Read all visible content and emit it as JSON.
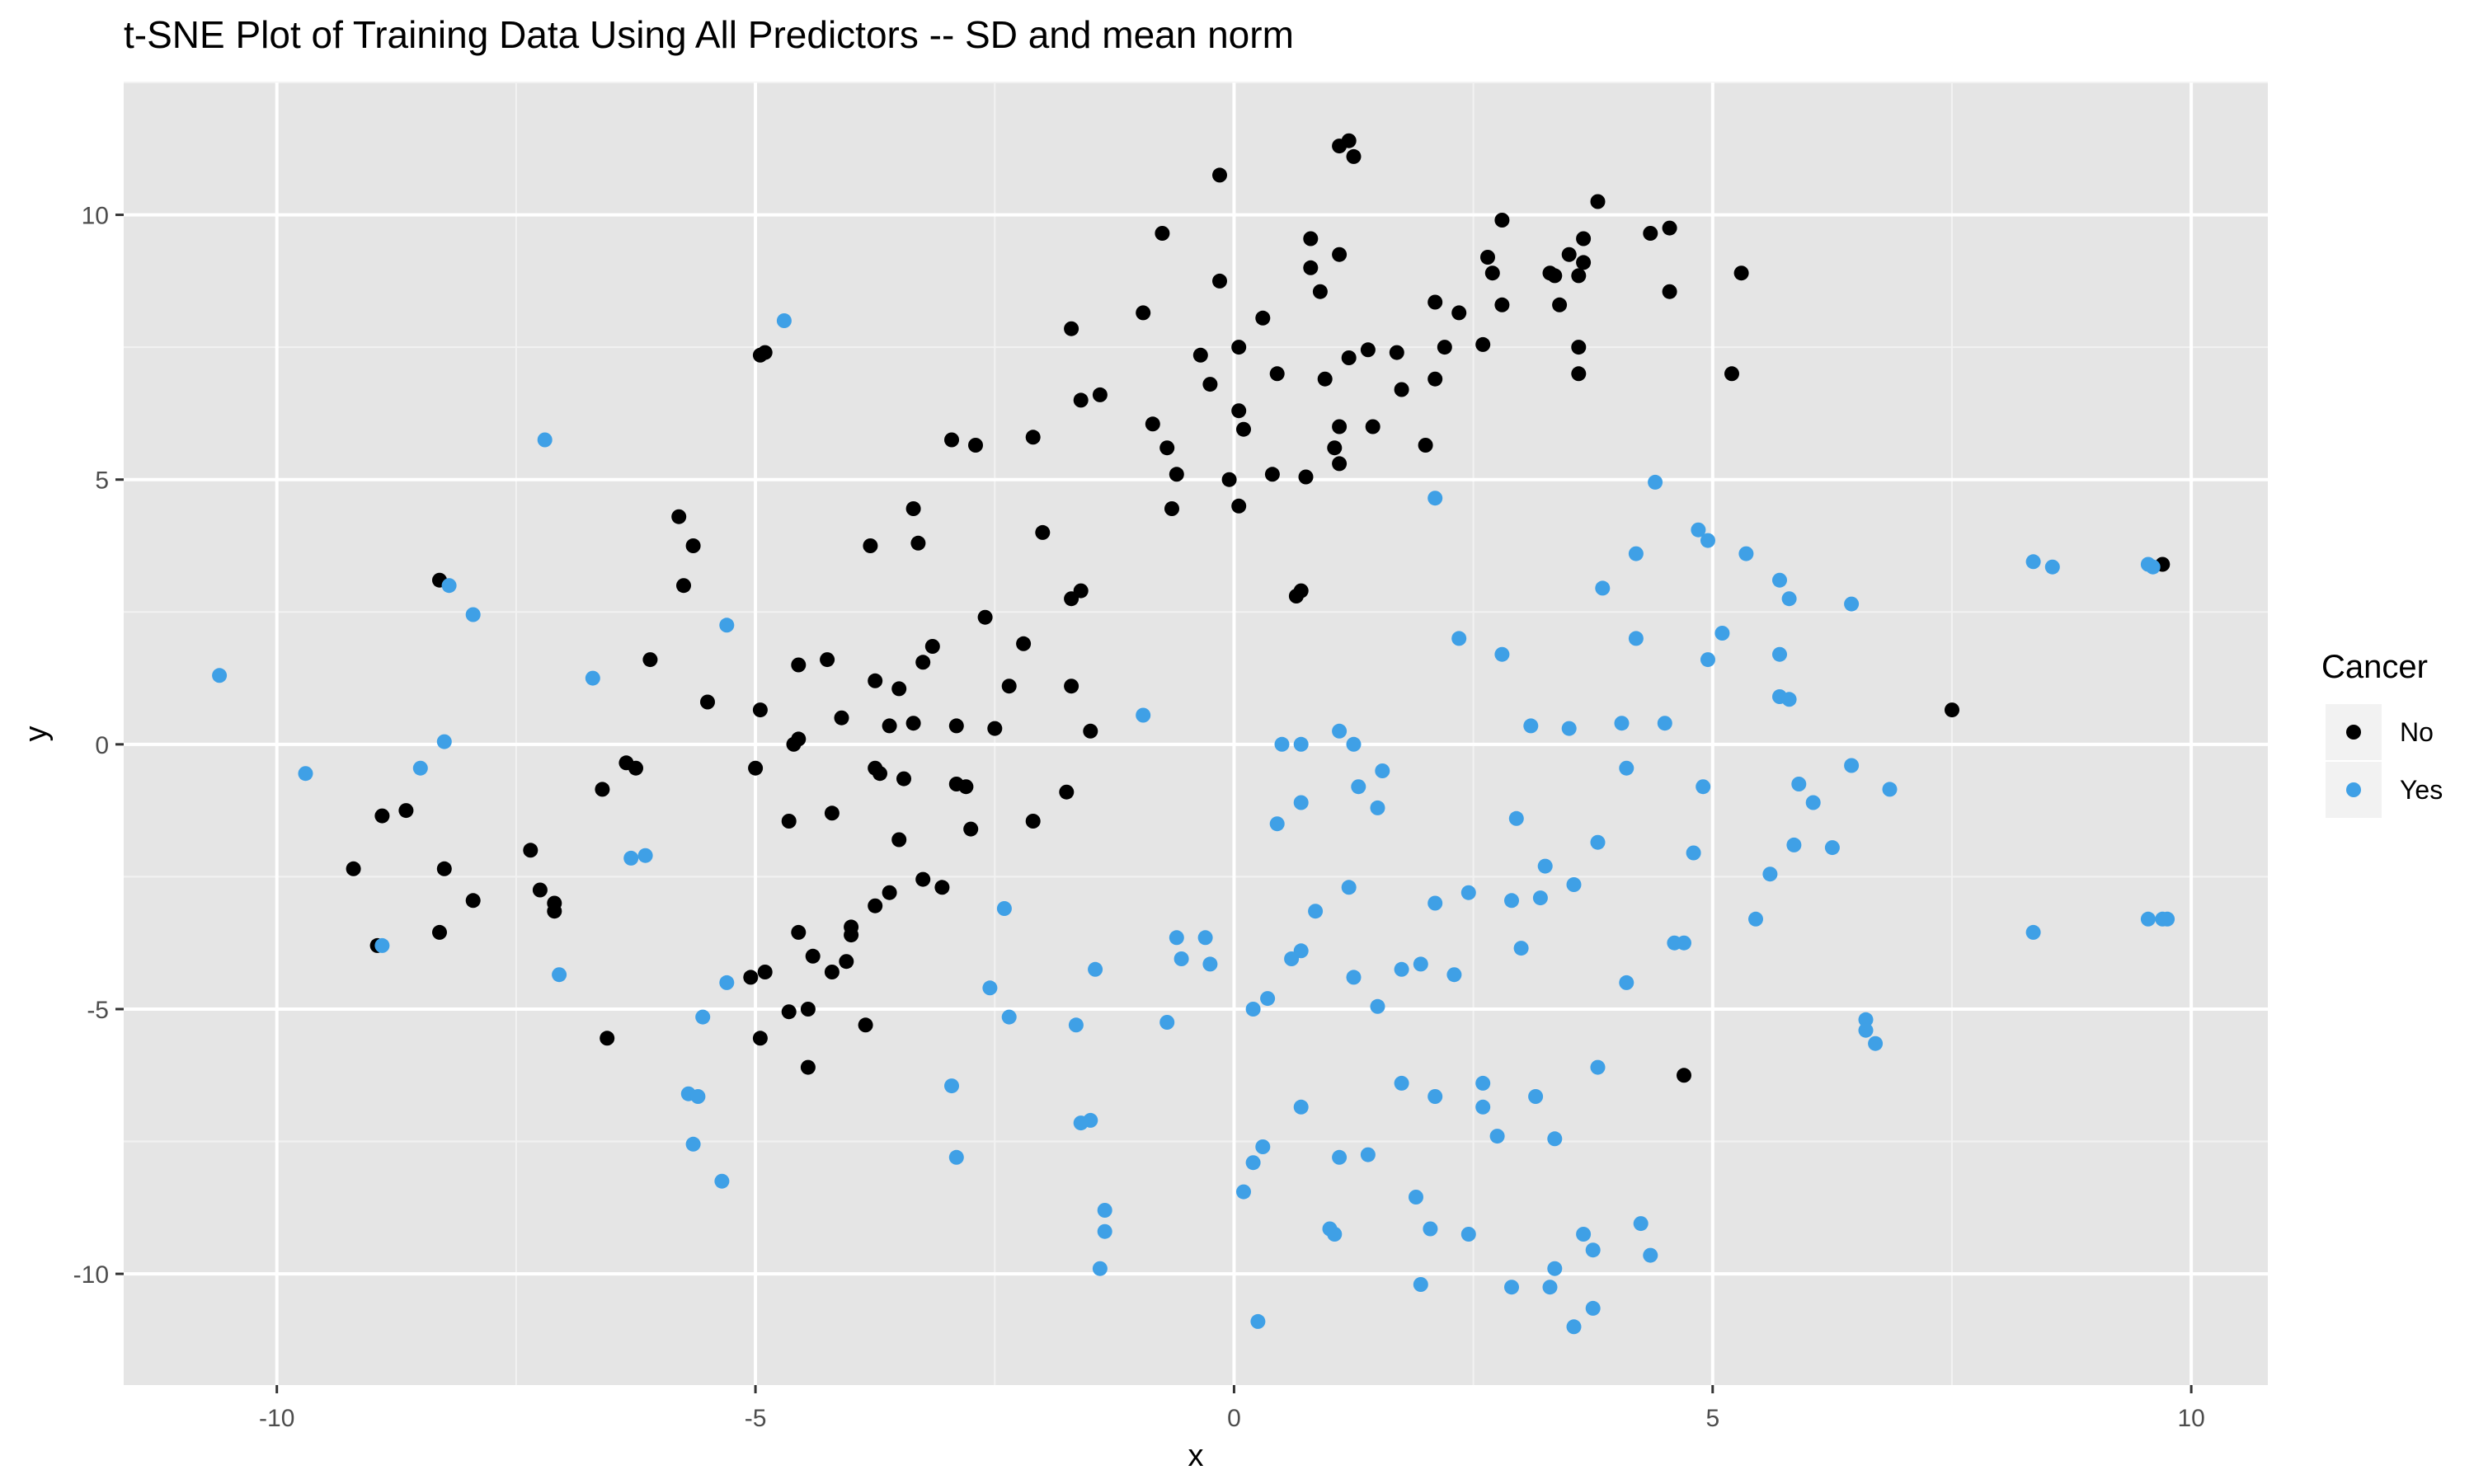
{
  "chart_data": {
    "type": "scatter",
    "title": "t-SNE Plot of Training Data Using All Predictors -- SD and mean norm",
    "xlabel": "x",
    "ylabel": "y",
    "xlim": [
      -11.6,
      10.8
    ],
    "ylim": [
      -12.1,
      12.5
    ],
    "x_ticks": [
      -10,
      -5,
      0,
      5,
      10
    ],
    "y_ticks": [
      -10,
      -5,
      0,
      5,
      10
    ],
    "grid": true,
    "legend_position": "right",
    "legend_title": "Cancer",
    "series": [
      {
        "name": "No",
        "color": "#000000",
        "points": [
          [
            1.2,
            11.4
          ],
          [
            1.1,
            11.3
          ],
          [
            1.25,
            11.1
          ],
          [
            -0.15,
            10.75
          ],
          [
            3.8,
            10.25
          ],
          [
            2.8,
            9.9
          ],
          [
            4.55,
            9.75
          ],
          [
            4.35,
            9.65
          ],
          [
            -0.75,
            9.65
          ],
          [
            0.8,
            9.55
          ],
          [
            3.65,
            9.55
          ],
          [
            3.5,
            9.25
          ],
          [
            2.65,
            9.2
          ],
          [
            1.1,
            9.25
          ],
          [
            3.65,
            9.1
          ],
          [
            0.8,
            9.0
          ],
          [
            2.7,
            8.9
          ],
          [
            3.3,
            8.9
          ],
          [
            3.35,
            8.85
          ],
          [
            3.6,
            8.85
          ],
          [
            5.3,
            8.9
          ],
          [
            -0.15,
            8.75
          ],
          [
            0.9,
            8.55
          ],
          [
            4.55,
            8.55
          ],
          [
            2.1,
            8.35
          ],
          [
            2.8,
            8.3
          ],
          [
            3.4,
            8.3
          ],
          [
            -0.95,
            8.15
          ],
          [
            2.35,
            8.15
          ],
          [
            0.3,
            8.05
          ],
          [
            -1.7,
            7.85
          ],
          [
            -4.9,
            7.4
          ],
          [
            -4.95,
            7.35
          ],
          [
            0.05,
            7.5
          ],
          [
            -0.35,
            7.35
          ],
          [
            2.6,
            7.55
          ],
          [
            3.6,
            7.5
          ],
          [
            2.2,
            7.5
          ],
          [
            1.4,
            7.45
          ],
          [
            1.7,
            7.4
          ],
          [
            1.2,
            7.3
          ],
          [
            0.45,
            7.0
          ],
          [
            0.95,
            6.9
          ],
          [
            2.1,
            6.9
          ],
          [
            3.6,
            7.0
          ],
          [
            5.2,
            7.0
          ],
          [
            -0.25,
            6.8
          ],
          [
            1.75,
            6.7
          ],
          [
            -1.4,
            6.6
          ],
          [
            -1.6,
            6.5
          ],
          [
            0.05,
            6.3
          ],
          [
            -0.85,
            6.05
          ],
          [
            1.1,
            6.0
          ],
          [
            1.45,
            6.0
          ],
          [
            0.1,
            5.95
          ],
          [
            -2.1,
            5.8
          ],
          [
            -2.95,
            5.75
          ],
          [
            -2.7,
            5.65
          ],
          [
            -0.7,
            5.6
          ],
          [
            1.05,
            5.6
          ],
          [
            2.0,
            5.65
          ],
          [
            1.1,
            5.3
          ],
          [
            -0.6,
            5.1
          ],
          [
            0.4,
            5.1
          ],
          [
            0.75,
            5.05
          ],
          [
            -0.05,
            5.0
          ],
          [
            -0.65,
            4.45
          ],
          [
            0.05,
            4.5
          ],
          [
            -3.35,
            4.45
          ],
          [
            -5.8,
            4.3
          ],
          [
            -2.0,
            4.0
          ],
          [
            -5.65,
            3.75
          ],
          [
            -3.8,
            3.75
          ],
          [
            -3.3,
            3.8
          ],
          [
            -8.3,
            3.1
          ],
          [
            -5.75,
            3.0
          ],
          [
            -1.6,
            2.9
          ],
          [
            0.7,
            2.9
          ],
          [
            -1.7,
            2.75
          ],
          [
            0.65,
            2.8
          ],
          [
            -2.6,
            2.4
          ],
          [
            -2.2,
            1.9
          ],
          [
            -3.15,
            1.85
          ],
          [
            -6.1,
            1.6
          ],
          [
            -4.25,
            1.6
          ],
          [
            -3.25,
            1.55
          ],
          [
            -4.55,
            1.5
          ],
          [
            -3.75,
            1.2
          ],
          [
            -2.35,
            1.1
          ],
          [
            -3.5,
            1.05
          ],
          [
            -1.7,
            1.1
          ],
          [
            -5.5,
            0.8
          ],
          [
            -4.95,
            0.65
          ],
          [
            -4.1,
            0.5
          ],
          [
            7.5,
            0.65
          ],
          [
            -3.6,
            0.35
          ],
          [
            -3.35,
            0.4
          ],
          [
            -2.9,
            0.35
          ],
          [
            -2.5,
            0.3
          ],
          [
            -1.5,
            0.25
          ],
          [
            -4.55,
            0.1
          ],
          [
            -4.6,
            0.0
          ],
          [
            -6.35,
            -0.35
          ],
          [
            -6.25,
            -0.45
          ],
          [
            -5.0,
            -0.45
          ],
          [
            -3.75,
            -0.45
          ],
          [
            -3.7,
            -0.55
          ],
          [
            -3.45,
            -0.65
          ],
          [
            -2.9,
            -0.75
          ],
          [
            -2.8,
            -0.8
          ],
          [
            -6.6,
            -0.85
          ],
          [
            -1.75,
            -0.9
          ],
          [
            -8.9,
            -1.35
          ],
          [
            -8.65,
            -1.25
          ],
          [
            -4.2,
            -1.3
          ],
          [
            -4.65,
            -1.45
          ],
          [
            -2.1,
            -1.45
          ],
          [
            -2.75,
            -1.6
          ],
          [
            -3.5,
            -1.8
          ],
          [
            -7.35,
            -2.0
          ],
          [
            -9.2,
            -2.35
          ],
          [
            -8.25,
            -2.35
          ],
          [
            -3.25,
            -2.55
          ],
          [
            -3.05,
            -2.7
          ],
          [
            -3.6,
            -2.8
          ],
          [
            -7.25,
            -2.75
          ],
          [
            -7.1,
            -3.0
          ],
          [
            -7.1,
            -3.15
          ],
          [
            -7.95,
            -2.95
          ],
          [
            -3.75,
            -3.05
          ],
          [
            -4.0,
            -3.45
          ],
          [
            -4.0,
            -3.6
          ],
          [
            -4.55,
            -3.55
          ],
          [
            -8.3,
            -3.55
          ],
          [
            -8.95,
            -3.8
          ],
          [
            -4.4,
            -4.0
          ],
          [
            -4.05,
            -4.1
          ],
          [
            -4.2,
            -4.3
          ],
          [
            -5.05,
            -4.4
          ],
          [
            -4.9,
            -4.3
          ],
          [
            -4.45,
            -5.0
          ],
          [
            -4.65,
            -5.05
          ],
          [
            -3.85,
            -5.3
          ],
          [
            -6.55,
            -5.55
          ],
          [
            -4.95,
            -5.55
          ],
          [
            -4.45,
            -6.1
          ],
          [
            4.7,
            -6.25
          ],
          [
            9.7,
            3.4
          ]
        ]
      },
      {
        "name": "Yes",
        "color": "#3fa0e6",
        "points": [
          [
            -4.7,
            8.0
          ],
          [
            -7.2,
            5.75
          ],
          [
            4.4,
            4.95
          ],
          [
            2.1,
            4.65
          ],
          [
            4.85,
            4.05
          ],
          [
            4.95,
            3.85
          ],
          [
            4.2,
            3.6
          ],
          [
            5.35,
            3.6
          ],
          [
            8.35,
            3.45
          ],
          [
            8.55,
            3.35
          ],
          [
            9.55,
            3.4
          ],
          [
            9.6,
            3.35
          ],
          [
            5.7,
            3.1
          ],
          [
            -8.2,
            3.0
          ],
          [
            3.85,
            2.95
          ],
          [
            5.8,
            2.75
          ],
          [
            6.45,
            2.65
          ],
          [
            -7.95,
            2.45
          ],
          [
            -5.3,
            2.25
          ],
          [
            5.1,
            2.1
          ],
          [
            2.35,
            2.0
          ],
          [
            4.2,
            2.0
          ],
          [
            2.8,
            1.7
          ],
          [
            5.7,
            1.7
          ],
          [
            4.95,
            1.6
          ],
          [
            -10.6,
            1.3
          ],
          [
            -6.7,
            1.25
          ],
          [
            5.7,
            0.9
          ],
          [
            5.8,
            0.85
          ],
          [
            -0.95,
            0.55
          ],
          [
            3.1,
            0.35
          ],
          [
            4.05,
            0.4
          ],
          [
            4.5,
            0.4
          ],
          [
            3.5,
            0.3
          ],
          [
            1.1,
            0.25
          ],
          [
            0.5,
            0.0
          ],
          [
            0.7,
            0.0
          ],
          [
            1.25,
            0.0
          ],
          [
            -8.25,
            0.05
          ],
          [
            4.1,
            -0.45
          ],
          [
            1.55,
            -0.5
          ],
          [
            -9.7,
            -0.55
          ],
          [
            6.45,
            -0.4
          ],
          [
            -8.5,
            -0.45
          ],
          [
            1.3,
            -0.8
          ],
          [
            4.9,
            -0.8
          ],
          [
            5.9,
            -0.75
          ],
          [
            6.85,
            -0.85
          ],
          [
            6.05,
            -1.1
          ],
          [
            0.7,
            -1.1
          ],
          [
            1.5,
            -1.2
          ],
          [
            2.95,
            -1.4
          ],
          [
            0.45,
            -1.5
          ],
          [
            3.8,
            -1.85
          ],
          [
            5.85,
            -1.9
          ],
          [
            6.25,
            -1.95
          ],
          [
            4.8,
            -2.05
          ],
          [
            -6.3,
            -2.15
          ],
          [
            -6.15,
            -2.1
          ],
          [
            3.25,
            -2.3
          ],
          [
            5.6,
            -2.45
          ],
          [
            3.55,
            -2.65
          ],
          [
            1.2,
            -2.7
          ],
          [
            2.45,
            -2.8
          ],
          [
            3.2,
            -2.9
          ],
          [
            2.9,
            -2.95
          ],
          [
            2.1,
            -3.0
          ],
          [
            -2.4,
            -3.1
          ],
          [
            0.85,
            -3.15
          ],
          [
            5.45,
            -3.3
          ],
          [
            9.55,
            -3.3
          ],
          [
            9.7,
            -3.3
          ],
          [
            9.75,
            -3.3
          ],
          [
            8.35,
            -3.55
          ],
          [
            -0.6,
            -3.65
          ],
          [
            -0.3,
            -3.65
          ],
          [
            4.6,
            -3.75
          ],
          [
            4.7,
            -3.75
          ],
          [
            3.0,
            -3.85
          ],
          [
            -8.9,
            -3.8
          ],
          [
            0.7,
            -3.9
          ],
          [
            -0.55,
            -4.05
          ],
          [
            0.6,
            -4.05
          ],
          [
            -0.25,
            -4.15
          ],
          [
            1.95,
            -4.15
          ],
          [
            1.75,
            -4.25
          ],
          [
            -1.45,
            -4.25
          ],
          [
            -7.05,
            -4.35
          ],
          [
            1.25,
            -4.4
          ],
          [
            2.3,
            -4.35
          ],
          [
            -5.3,
            -4.5
          ],
          [
            4.1,
            -4.5
          ],
          [
            -2.55,
            -4.6
          ],
          [
            0.35,
            -4.8
          ],
          [
            1.5,
            -4.95
          ],
          [
            0.2,
            -5.0
          ],
          [
            -5.55,
            -5.15
          ],
          [
            -2.35,
            -5.15
          ],
          [
            -1.65,
            -5.3
          ],
          [
            -0.7,
            -5.25
          ],
          [
            6.6,
            -5.2
          ],
          [
            6.6,
            -5.4
          ],
          [
            6.7,
            -5.65
          ],
          [
            3.8,
            -6.1
          ],
          [
            1.75,
            -6.4
          ],
          [
            2.6,
            -6.4
          ],
          [
            -2.95,
            -6.45
          ],
          [
            -5.7,
            -6.6
          ],
          [
            -5.6,
            -6.65
          ],
          [
            2.1,
            -6.65
          ],
          [
            3.15,
            -6.65
          ],
          [
            2.6,
            -6.85
          ],
          [
            0.7,
            -6.85
          ],
          [
            -1.5,
            -7.1
          ],
          [
            -1.6,
            -7.15
          ],
          [
            2.75,
            -7.4
          ],
          [
            3.35,
            -7.45
          ],
          [
            -5.65,
            -7.55
          ],
          [
            0.3,
            -7.6
          ],
          [
            1.4,
            -7.75
          ],
          [
            1.1,
            -7.8
          ],
          [
            -2.9,
            -7.8
          ],
          [
            0.2,
            -7.9
          ],
          [
            -5.35,
            -8.25
          ],
          [
            0.1,
            -8.45
          ],
          [
            1.9,
            -8.55
          ],
          [
            -1.35,
            -8.8
          ],
          [
            4.25,
            -9.05
          ],
          [
            1.0,
            -9.15
          ],
          [
            1.05,
            -9.25
          ],
          [
            -1.35,
            -9.2
          ],
          [
            2.05,
            -9.15
          ],
          [
            2.45,
            -9.25
          ],
          [
            3.65,
            -9.25
          ],
          [
            3.75,
            -9.55
          ],
          [
            4.35,
            -9.65
          ],
          [
            -1.4,
            -9.9
          ],
          [
            3.35,
            -9.9
          ],
          [
            1.95,
            -10.2
          ],
          [
            2.9,
            -10.25
          ],
          [
            3.3,
            -10.25
          ],
          [
            3.75,
            -10.65
          ],
          [
            0.25,
            -10.9
          ],
          [
            3.55,
            -11.0
          ]
        ]
      }
    ]
  }
}
